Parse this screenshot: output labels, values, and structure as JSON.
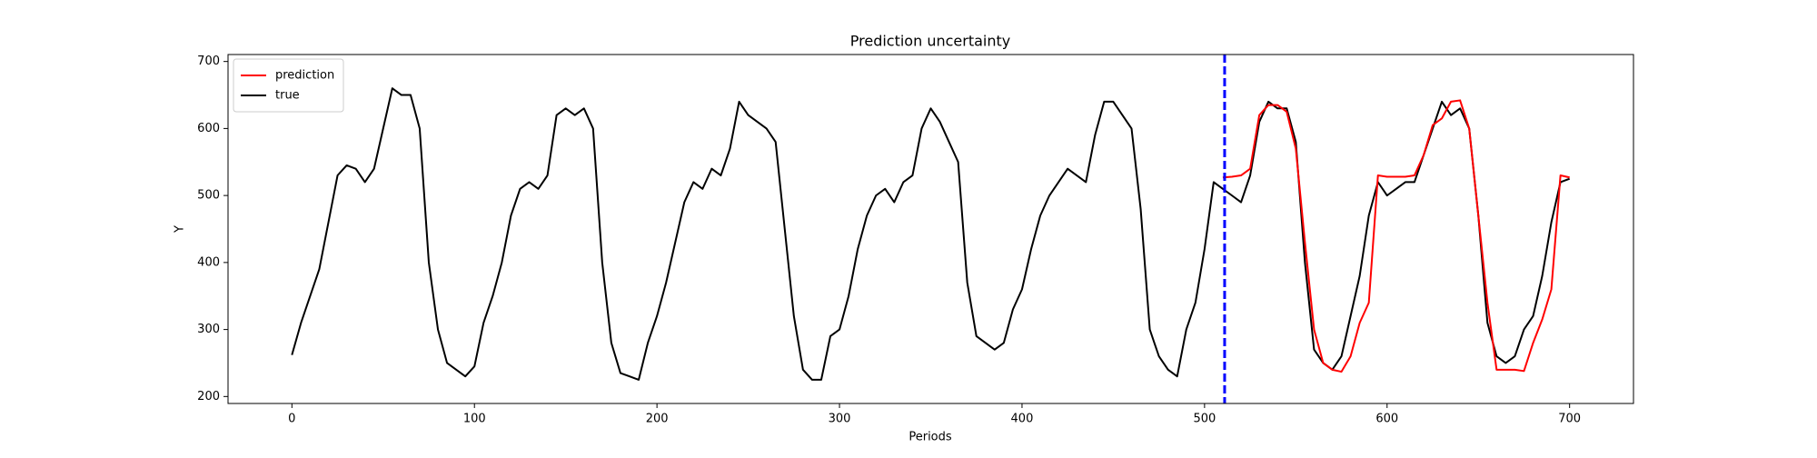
{
  "chart_data": {
    "type": "line",
    "title": "Prediction uncertainty",
    "x_label": "Periods",
    "y_label": "Y",
    "xlim": [
      -35,
      735
    ],
    "ylim": [
      189.6,
      710.4
    ],
    "xticks": [
      0,
      100,
      200,
      300,
      400,
      500,
      600,
      700
    ],
    "yticks": [
      200,
      300,
      400,
      500,
      600,
      700
    ],
    "grid": false,
    "legend": "upper left",
    "vline": {
      "x": 511,
      "color": "#0000ff"
    },
    "series": [
      {
        "name": "prediction",
        "color": "#ff0000",
        "x": [
          510,
          515,
          520,
          525,
          530,
          535,
          540,
          545,
          550,
          555,
          560,
          565,
          570,
          575,
          580,
          585,
          590,
          595,
          600,
          605,
          610,
          615,
          620,
          625,
          630,
          635,
          640,
          645,
          650,
          655,
          660,
          665,
          670,
          675,
          680,
          685,
          690,
          695,
          700
        ],
        "values": [
          527,
          528,
          530,
          540,
          620,
          635,
          635,
          625,
          570,
          430,
          300,
          250,
          240,
          237,
          260,
          310,
          340,
          530,
          528,
          528,
          528,
          530,
          560,
          605,
          615,
          640,
          642,
          600,
          470,
          340,
          240,
          240,
          240,
          238,
          280,
          315,
          360,
          530,
          527
        ]
      },
      {
        "name": "true",
        "color": "#000000",
        "x": [
          0,
          5,
          10,
          15,
          20,
          25,
          30,
          35,
          40,
          45,
          50,
          55,
          60,
          65,
          70,
          75,
          80,
          85,
          90,
          95,
          100,
          105,
          110,
          115,
          120,
          125,
          130,
          135,
          140,
          145,
          150,
          155,
          160,
          165,
          170,
          175,
          180,
          185,
          190,
          195,
          200,
          205,
          210,
          215,
          220,
          225,
          230,
          235,
          240,
          245,
          250,
          255,
          260,
          265,
          270,
          275,
          280,
          285,
          290,
          295,
          300,
          305,
          310,
          315,
          320,
          325,
          330,
          335,
          340,
          345,
          350,
          355,
          360,
          365,
          370,
          375,
          380,
          385,
          390,
          395,
          400,
          405,
          410,
          415,
          420,
          425,
          430,
          435,
          440,
          445,
          450,
          455,
          460,
          465,
          470,
          475,
          480,
          485,
          490,
          495,
          500,
          505,
          510,
          515,
          520,
          525,
          530,
          535,
          540,
          545,
          550,
          555,
          560,
          565,
          570,
          575,
          580,
          585,
          590,
          595,
          600,
          605,
          610,
          615,
          620,
          625,
          630,
          635,
          640,
          645,
          650,
          655,
          660,
          665,
          670,
          675,
          680,
          685,
          690,
          695,
          700
        ],
        "values": [
          262,
          310,
          350,
          390,
          460,
          530,
          545,
          540,
          520,
          540,
          600,
          660,
          650,
          650,
          600,
          400,
          300,
          250,
          240,
          230,
          245,
          310,
          350,
          400,
          470,
          510,
          520,
          510,
          530,
          620,
          630,
          620,
          630,
          600,
          400,
          280,
          235,
          230,
          225,
          280,
          320,
          370,
          430,
          490,
          520,
          510,
          540,
          530,
          570,
          640,
          620,
          610,
          600,
          580,
          450,
          320,
          240,
          225,
          225,
          290,
          300,
          350,
          420,
          470,
          500,
          510,
          490,
          520,
          530,
          600,
          630,
          610,
          580,
          550,
          370,
          290,
          280,
          270,
          280,
          330,
          360,
          420,
          470,
          500,
          520,
          540,
          530,
          520,
          590,
          640,
          640,
          620,
          600,
          480,
          300,
          260,
          240,
          230,
          300,
          340,
          420,
          520,
          510,
          500,
          490,
          530,
          610,
          640,
          630,
          630,
          580,
          400,
          270,
          250,
          240,
          260,
          320,
          380,
          470,
          520,
          500,
          510,
          520,
          520,
          560,
          600,
          640,
          620,
          630,
          600,
          470,
          310,
          260,
          250,
          260,
          300,
          320,
          380,
          460,
          520,
          525
        ]
      }
    ]
  }
}
